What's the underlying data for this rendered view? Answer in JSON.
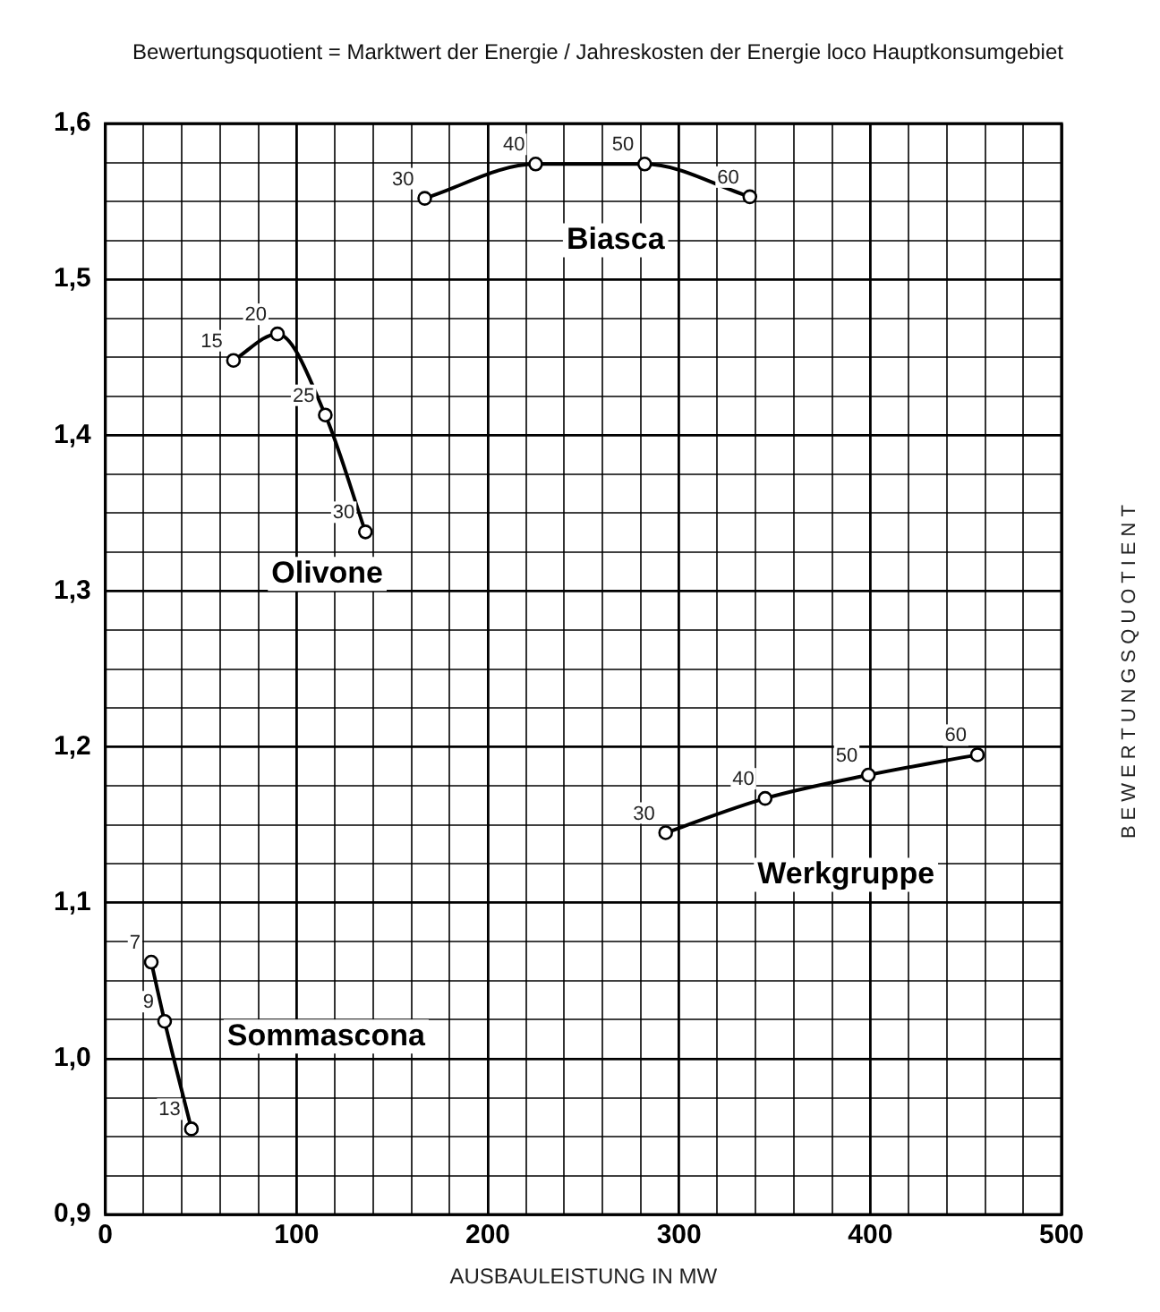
{
  "chart_data": {
    "type": "line",
    "title": "Bewertungsquotient = Marktwert der Energie / Jahreskosten der Energie loco Hauptkonsumgebiet",
    "xlabel": "AUSBAULEISTUNG IN MW",
    "ylabel": "BEWERTUNGSQUOTIENT",
    "series": [
      {
        "name": "Biasca",
        "color": "#000000",
        "x": [
          167,
          225,
          282,
          337
        ],
        "values": [
          1.552,
          1.574,
          1.574,
          1.553
        ]
      },
      {
        "name": "Olivone",
        "color": "#000000",
        "x": [
          67,
          90,
          115,
          136
        ],
        "values": [
          1.448,
          1.465,
          1.413,
          1.338
        ]
      },
      {
        "name": "Werkgruppe",
        "color": "#000000",
        "x": [
          293,
          345,
          399,
          456
        ],
        "values": [
          1.145,
          1.167,
          1.182,
          1.195
        ]
      },
      {
        "name": "Sommascona",
        "color": "#000000",
        "x": [
          24,
          31,
          45
        ],
        "values": [
          1.062,
          1.024,
          0.955
        ]
      }
    ],
    "annotations": [
      {
        "text": "30",
        "x": 167,
        "y": 1.552
      },
      {
        "text": "40",
        "x": 225,
        "y": 1.574
      },
      {
        "text": "50",
        "x": 282,
        "y": 1.574
      },
      {
        "text": "60",
        "x": 337,
        "y": 1.553
      },
      {
        "text": "15",
        "x": 67,
        "y": 1.448
      },
      {
        "text": "20",
        "x": 90,
        "y": 1.465
      },
      {
        "text": "25",
        "x": 115,
        "y": 1.413
      },
      {
        "text": "30",
        "x": 136,
        "y": 1.338
      },
      {
        "text": "30",
        "x": 293,
        "y": 1.145
      },
      {
        "text": "40",
        "x": 345,
        "y": 1.167
      },
      {
        "text": "50",
        "x": 399,
        "y": 1.182
      },
      {
        "text": "60",
        "x": 456,
        "y": 1.195
      },
      {
        "text": "7",
        "x": 24,
        "y": 1.062
      },
      {
        "text": "9",
        "x": 31,
        "y": 1.024
      },
      {
        "text": "13",
        "x": 45,
        "y": 0.955
      }
    ],
    "xlim": [
      0,
      500
    ],
    "xticks": [
      0,
      {
        "value": 20,
        "label": null
      },
      {
        "value": 40,
        "label": null
      },
      {
        "value": 60,
        "label": null
      },
      {
        "value": 80,
        "label": null
      },
      100,
      {
        "value": 120,
        "label": null
      },
      {
        "value": 140,
        "label": null
      },
      {
        "value": 160,
        "label": null
      },
      {
        "value": 180,
        "label": null
      },
      200,
      {
        "value": 220,
        "label": null
      },
      {
        "value": 240,
        "label": null
      },
      {
        "value": 260,
        "label": null
      },
      {
        "value": 280,
        "label": null
      },
      300,
      {
        "value": 320,
        "label": null
      },
      {
        "value": 340,
        "label": null
      },
      {
        "value": 360,
        "label": null
      },
      {
        "value": 380,
        "label": null
      },
      400,
      {
        "value": 420,
        "label": null
      },
      {
        "value": 440,
        "label": null
      },
      {
        "value": 460,
        "label": null
      },
      {
        "value": 480,
        "label": null
      },
      500
    ],
    "ylim": [
      0.9,
      1.6
    ],
    "yticks": [
      {
        "value": 0.9,
        "label": "0,9"
      },
      {
        "value": 0.925,
        "label": null
      },
      {
        "value": 0.95,
        "label": null
      },
      {
        "value": 0.975,
        "label": null
      },
      {
        "value": 1.0,
        "label": "1,0"
      },
      {
        "value": 1.025,
        "label": null
      },
      {
        "value": 1.05,
        "label": null
      },
      {
        "value": 1.075,
        "label": null
      },
      {
        "value": 1.1,
        "label": "1,1"
      },
      {
        "value": 1.125,
        "label": null
      },
      {
        "value": 1.15,
        "label": null
      },
      {
        "value": 1.175,
        "label": null
      },
      {
        "value": 1.2,
        "label": "1,2"
      },
      {
        "value": 1.225,
        "label": null
      },
      {
        "value": 1.25,
        "label": null
      },
      {
        "value": 1.275,
        "label": null
      },
      {
        "value": 1.3,
        "label": "1,3"
      },
      {
        "value": 1.325,
        "label": null
      },
      {
        "value": 1.35,
        "label": null
      },
      {
        "value": 1.375,
        "label": null
      },
      {
        "value": 1.4,
        "label": "1,4"
      },
      {
        "value": 1.425,
        "label": null
      },
      {
        "value": 1.45,
        "label": null
      },
      {
        "value": 1.475,
        "label": null
      },
      {
        "value": 1.5,
        "label": "1,5"
      },
      {
        "value": 1.525,
        "label": null
      },
      {
        "value": 1.55,
        "label": null
      },
      {
        "value": 1.575,
        "label": null
      },
      {
        "value": 1.6,
        "label": "1,6"
      }
    ],
    "grid": true,
    "legend": false,
    "marker": "circle",
    "line_style": "solid"
  }
}
